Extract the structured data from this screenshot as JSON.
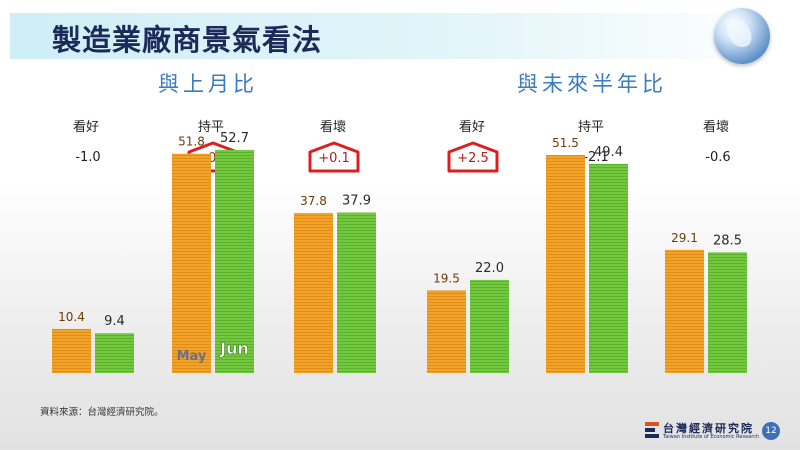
{
  "slide": {
    "title": "製造業廠商景氣看法",
    "source": "資料來源：台灣經濟研究院。",
    "page_number": "12",
    "logo_name": "台灣經濟研究院",
    "logo_english": "Taiwan Institute of Economic Research"
  },
  "sections": [
    {
      "title": "與上月比",
      "groups": [
        {
          "label": "看好",
          "change": "-1.0",
          "highlight": false
        },
        {
          "label": "持平",
          "change": "+0.9",
          "highlight": true
        },
        {
          "label": "看壞",
          "change": "+0.1",
          "highlight": true
        }
      ]
    },
    {
      "title": "與未來半年比",
      "groups": [
        {
          "label": "看好",
          "change": "+2.5",
          "highlight": true
        },
        {
          "label": "持平",
          "change": "-2.1",
          "highlight": false
        },
        {
          "label": "看壞",
          "change": "-0.6",
          "highlight": false
        }
      ]
    }
  ],
  "chart_data": [
    {
      "type": "bar",
      "categories": [
        "看好",
        "持平",
        "看壞"
      ],
      "series": [
        {
          "name": "May",
          "values": [
            10.4,
            51.8,
            37.8
          ],
          "color": "#f2a32a"
        },
        {
          "name": "Jun",
          "values": [
            9.4,
            52.7,
            37.9
          ],
          "color": "#6cc43a"
        }
      ],
      "ylim": [
        0,
        60
      ]
    },
    {
      "type": "bar",
      "categories": [
        "看好",
        "持平",
        "看壞"
      ],
      "series": [
        {
          "values": [
            19.5,
            51.5,
            29.1
          ],
          "color": "#f2a32a"
        },
        {
          "values": [
            22.0,
            49.4,
            28.5
          ],
          "color": "#6cc43a"
        }
      ],
      "ylim": [
        0,
        60
      ]
    }
  ],
  "colors": {
    "highlight_border": "#d92020",
    "title": "#1c2a5a",
    "section_title": "#3b7bbf"
  }
}
